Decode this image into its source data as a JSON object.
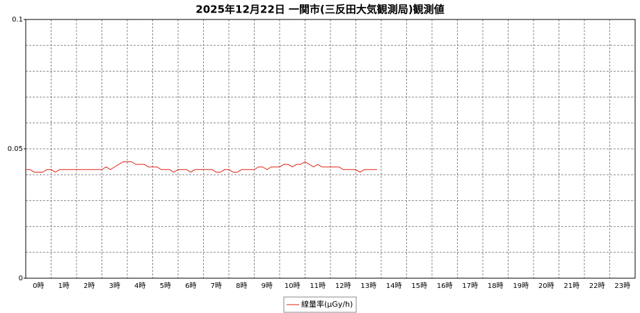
{
  "chart_data": {
    "type": "line",
    "title": "2025年12月22日 一関市(三反田大気観測局)観測値",
    "categories": [
      "0時",
      "1時",
      "2時",
      "3時",
      "4時",
      "5時",
      "6時",
      "7時",
      "8時",
      "9時",
      "10時",
      "11時",
      "12時",
      "13時",
      "14時",
      "15時",
      "16時",
      "17時",
      "18時",
      "19時",
      "20時",
      "21時",
      "22時",
      "23時"
    ],
    "series": [
      {
        "name": "線量率(μGy/h)",
        "color": "#dd2211",
        "values": [
          [
            0.042,
            0.042,
            0.041,
            0.041,
            0.041,
            0.042
          ],
          [
            0.042,
            0.041,
            0.042,
            0.042,
            0.042,
            0.042
          ],
          [
            0.042,
            0.042,
            0.042,
            0.042,
            0.042,
            0.042
          ],
          [
            0.042,
            0.043,
            0.042,
            0.043,
            0.044,
            0.045
          ],
          [
            0.045,
            0.045,
            0.044,
            0.044,
            0.044,
            0.043
          ],
          [
            0.043,
            0.043,
            0.042,
            0.042,
            0.042,
            0.041
          ],
          [
            0.042,
            0.042,
            0.042,
            0.041,
            0.042,
            0.042
          ],
          [
            0.042,
            0.042,
            0.042,
            0.041,
            0.041,
            0.042
          ],
          [
            0.042,
            0.041,
            0.041,
            0.042,
            0.042,
            0.042
          ],
          [
            0.042,
            0.043,
            0.043,
            0.042,
            0.043,
            0.043
          ],
          [
            0.043,
            0.044,
            0.044,
            0.043,
            0.044,
            0.044
          ],
          [
            0.045,
            0.044,
            0.043,
            0.044,
            0.043,
            0.043
          ],
          [
            0.043,
            0.043,
            0.043,
            0.042,
            0.042,
            0.042
          ],
          [
            0.042,
            0.041,
            0.042,
            0.042,
            0.042,
            0.042
          ],
          [
            null,
            null,
            null,
            null,
            null,
            null
          ],
          [
            null,
            null,
            null,
            null,
            null,
            null
          ],
          [
            null,
            null,
            null,
            null,
            null,
            null
          ],
          [
            null,
            null,
            null,
            null,
            null,
            null
          ],
          [
            null,
            null,
            null,
            null,
            null,
            null
          ],
          [
            null,
            null,
            null,
            null,
            null,
            null
          ],
          [
            null,
            null,
            null,
            null,
            null,
            null
          ],
          [
            null,
            null,
            null,
            null,
            null,
            null
          ],
          [
            null,
            null,
            null,
            null,
            null,
            null
          ],
          [
            null,
            null,
            null,
            null,
            null,
            null
          ]
        ]
      }
    ],
    "ylim": [
      0,
      0.1
    ],
    "yticks": [
      0,
      0.05,
      0.1
    ],
    "ygrid": [
      0.01,
      0.02,
      0.03,
      0.04,
      0.05,
      0.06,
      0.07,
      0.08,
      0.09
    ],
    "grid": true,
    "legend": "bottom"
  }
}
